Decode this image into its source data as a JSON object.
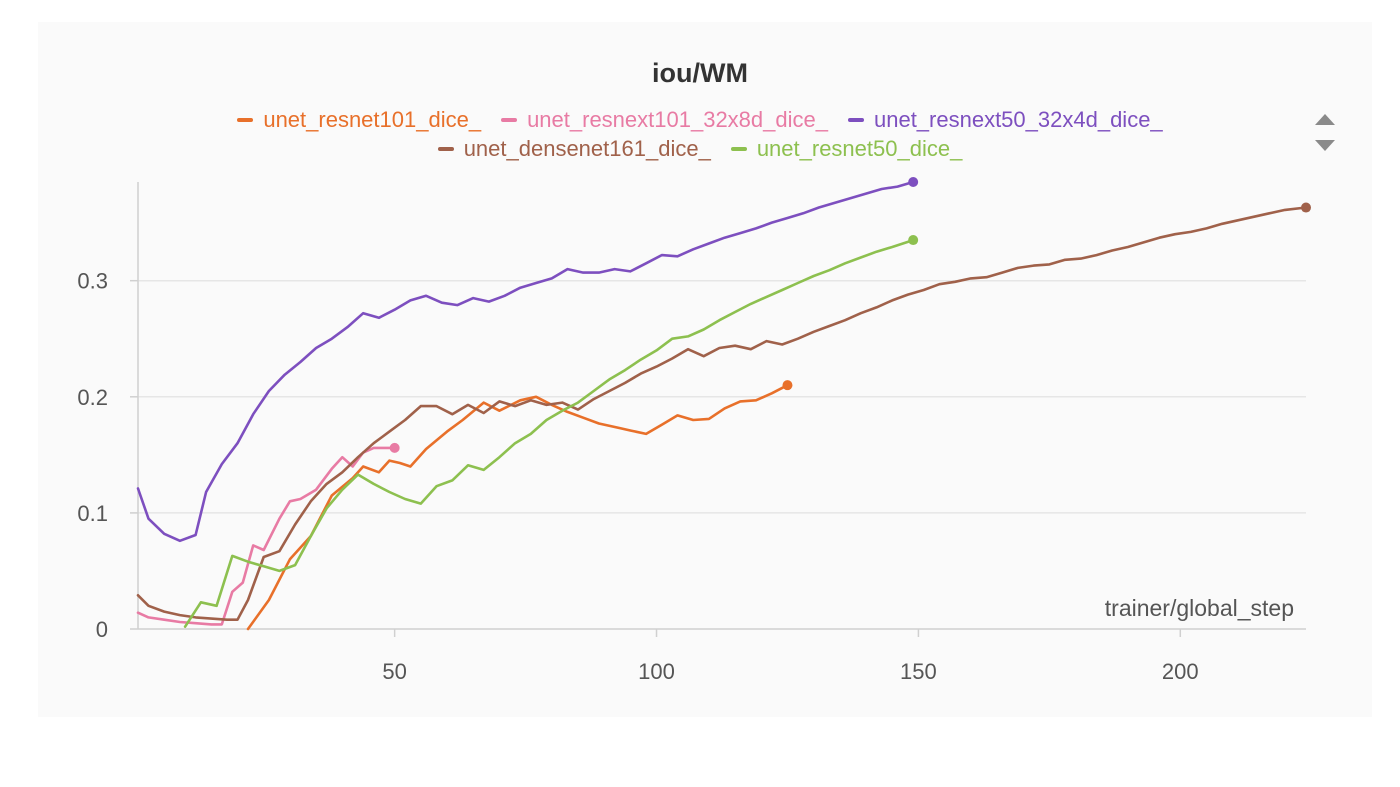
{
  "chart_data": {
    "type": "line",
    "title": "iou/WM",
    "xlabel": "trainer/global_step",
    "ylabel": "",
    "xlim": [
      1,
      224
    ],
    "ylim": [
      0,
      0.385
    ],
    "xticks": [
      50,
      100,
      150,
      200
    ],
    "yticks": [
      0,
      0.1,
      0.2,
      0.3
    ],
    "ytick_labels": [
      "0",
      "0.1",
      "0.2",
      "0.3"
    ],
    "grid": true,
    "legend_position": "top",
    "series": [
      {
        "name": "unet_resnet101_dice_",
        "color": "#e8702a",
        "x": [
          22,
          26,
          30,
          34,
          38,
          42,
          44,
          47,
          49,
          51,
          53,
          56,
          60,
          63,
          67,
          70,
          74,
          77,
          80,
          83,
          86,
          89,
          93,
          95,
          98,
          101,
          104,
          107,
          110,
          113,
          116,
          119,
          122,
          125
        ],
        "y": [
          0,
          0.025,
          0.06,
          0.08,
          0.115,
          0.13,
          0.14,
          0.135,
          0.145,
          0.143,
          0.14,
          0.155,
          0.17,
          0.18,
          0.195,
          0.188,
          0.197,
          0.2,
          0.193,
          0.187,
          0.182,
          0.177,
          0.173,
          0.171,
          0.168,
          0.176,
          0.184,
          0.18,
          0.181,
          0.19,
          0.196,
          0.197,
          0.203,
          0.21
        ]
      },
      {
        "name": "unet_resnext101_32x8d_dice_",
        "color": "#e87ba4",
        "x": [
          1,
          3,
          6,
          9,
          12,
          15,
          17,
          19,
          21,
          23,
          25,
          28,
          30,
          32,
          35,
          38,
          40,
          42,
          44,
          46,
          48,
          50
        ],
        "y": [
          0.014,
          0.01,
          0.008,
          0.006,
          0.005,
          0.004,
          0.004,
          0.032,
          0.04,
          0.072,
          0.068,
          0.095,
          0.11,
          0.112,
          0.12,
          0.138,
          0.148,
          0.14,
          0.152,
          0.156,
          0.156,
          0.156
        ]
      },
      {
        "name": "unet_resnext50_32x4d_dice_",
        "color": "#7d4fbf",
        "x": [
          1,
          3,
          6,
          9,
          12,
          14,
          17,
          20,
          23,
          26,
          29,
          32,
          35,
          38,
          41,
          44,
          47,
          50,
          53,
          56,
          59,
          62,
          65,
          68,
          71,
          74,
          77,
          80,
          83,
          86,
          89,
          92,
          95,
          98,
          101,
          104,
          107,
          110,
          113,
          116,
          119,
          122,
          125,
          128,
          131,
          134,
          137,
          140,
          143,
          146,
          149
        ],
        "y": [
          0.121,
          0.095,
          0.082,
          0.076,
          0.081,
          0.118,
          0.142,
          0.16,
          0.185,
          0.205,
          0.219,
          0.23,
          0.242,
          0.25,
          0.26,
          0.272,
          0.268,
          0.275,
          0.283,
          0.287,
          0.281,
          0.279,
          0.285,
          0.282,
          0.287,
          0.294,
          0.298,
          0.302,
          0.31,
          0.307,
          0.307,
          0.31,
          0.308,
          0.315,
          0.322,
          0.321,
          0.327,
          0.332,
          0.337,
          0.341,
          0.345,
          0.35,
          0.354,
          0.358,
          0.363,
          0.367,
          0.371,
          0.375,
          0.379,
          0.381,
          0.385
        ]
      },
      {
        "name": "unet_densenet161_dice_",
        "color": "#a0614a",
        "x": [
          1,
          3,
          6,
          9,
          12,
          15,
          18,
          20,
          22,
          25,
          28,
          31,
          34,
          37,
          40,
          43,
          46,
          49,
          52,
          55,
          58,
          61,
          64,
          67,
          70,
          73,
          76,
          79,
          82,
          85,
          88,
          91,
          94,
          97,
          100,
          103,
          106,
          109,
          112,
          115,
          118,
          121,
          124,
          127,
          130,
          133,
          136,
          139,
          142,
          145,
          148,
          151,
          154,
          157,
          160,
          163,
          166,
          169,
          172,
          175,
          178,
          181,
          184,
          187,
          190,
          193,
          196,
          199,
          202,
          205,
          208,
          211,
          214,
          217,
          220,
          224
        ],
        "y": [
          0.029,
          0.02,
          0.015,
          0.012,
          0.01,
          0.009,
          0.008,
          0.008,
          0.025,
          0.062,
          0.067,
          0.09,
          0.11,
          0.125,
          0.135,
          0.148,
          0.16,
          0.17,
          0.18,
          0.192,
          0.192,
          0.185,
          0.193,
          0.186,
          0.196,
          0.192,
          0.197,
          0.193,
          0.195,
          0.189,
          0.198,
          0.205,
          0.212,
          0.22,
          0.226,
          0.233,
          0.241,
          0.235,
          0.242,
          0.244,
          0.241,
          0.248,
          0.245,
          0.25,
          0.256,
          0.261,
          0.266,
          0.272,
          0.277,
          0.283,
          0.288,
          0.292,
          0.297,
          0.299,
          0.302,
          0.303,
          0.307,
          0.311,
          0.313,
          0.314,
          0.318,
          0.319,
          0.322,
          0.326,
          0.329,
          0.333,
          0.337,
          0.34,
          0.342,
          0.345,
          0.349,
          0.352,
          0.355,
          0.358,
          0.361,
          0.363
        ]
      },
      {
        "name": "unet_resnet50_dice_",
        "color": "#8dc04f",
        "x": [
          10,
          13,
          16,
          19,
          22,
          25,
          28,
          31,
          34,
          37,
          40,
          43,
          46,
          49,
          52,
          55,
          58,
          61,
          64,
          67,
          70,
          73,
          76,
          79,
          82,
          85,
          88,
          91,
          94,
          97,
          100,
          103,
          106,
          109,
          112,
          115,
          118,
          121,
          124,
          127,
          130,
          133,
          136,
          139,
          142,
          145,
          149
        ],
        "y": [
          0.002,
          0.023,
          0.02,
          0.063,
          0.058,
          0.054,
          0.05,
          0.055,
          0.08,
          0.104,
          0.12,
          0.133,
          0.125,
          0.118,
          0.112,
          0.108,
          0.123,
          0.128,
          0.141,
          0.137,
          0.148,
          0.16,
          0.168,
          0.18,
          0.188,
          0.195,
          0.205,
          0.215,
          0.223,
          0.232,
          0.24,
          0.25,
          0.252,
          0.258,
          0.266,
          0.273,
          0.28,
          0.286,
          0.292,
          0.298,
          0.304,
          0.309,
          0.315,
          0.32,
          0.325,
          0.329,
          0.335
        ]
      }
    ]
  },
  "legend": {
    "rows": [
      [
        0,
        1,
        2
      ],
      [
        3,
        4
      ]
    ]
  }
}
